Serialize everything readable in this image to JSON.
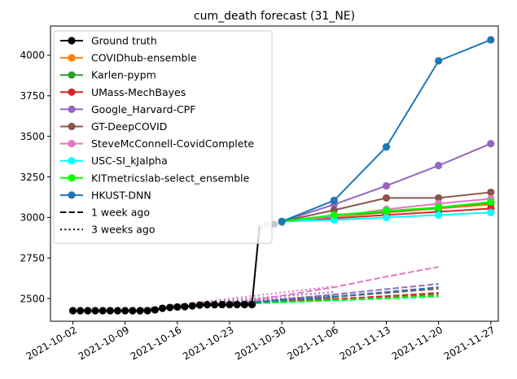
{
  "chart_data": {
    "type": "line",
    "title": "cum_death forecast (31_NE)",
    "xlabel": "",
    "ylabel": "",
    "x_range": [
      "2021-09-29",
      "2021-11-28"
    ],
    "ylim": [
      2360,
      4180
    ],
    "y_ticks": [
      2500,
      2750,
      3000,
      3250,
      3500,
      3750,
      4000
    ],
    "x_ticks": [
      "2021-10-02",
      "2021-10-09",
      "2021-10-16",
      "2021-10-23",
      "2021-10-30",
      "2021-11-06",
      "2021-11-13",
      "2021-11-20",
      "2021-11-27"
    ],
    "grid": false,
    "legend_position": "upper left",
    "ground_truth": {
      "name": "Ground truth",
      "color": "#000000",
      "points": [
        [
          "2021-10-02",
          2425
        ],
        [
          "2021-10-03",
          2425
        ],
        [
          "2021-10-04",
          2425
        ],
        [
          "2021-10-05",
          2425
        ],
        [
          "2021-10-06",
          2425
        ],
        [
          "2021-10-07",
          2425
        ],
        [
          "2021-10-08",
          2425
        ],
        [
          "2021-10-09",
          2425
        ],
        [
          "2021-10-10",
          2425
        ],
        [
          "2021-10-11",
          2425
        ],
        [
          "2021-10-12",
          2425
        ],
        [
          "2021-10-13",
          2430
        ],
        [
          "2021-10-14",
          2440
        ],
        [
          "2021-10-15",
          2445
        ],
        [
          "2021-10-16",
          2448
        ],
        [
          "2021-10-17",
          2450
        ],
        [
          "2021-10-18",
          2455
        ],
        [
          "2021-10-19",
          2460
        ],
        [
          "2021-10-20",
          2462
        ],
        [
          "2021-10-21",
          2462
        ],
        [
          "2021-10-22",
          2463
        ],
        [
          "2021-10-23",
          2463
        ],
        [
          "2021-10-24",
          2463
        ],
        [
          "2021-10-25",
          2463
        ],
        [
          "2021-10-26",
          2463
        ]
      ]
    },
    "gray_points": [
      [
        "2021-10-09",
        2425
      ],
      [
        "2021-10-10",
        2425
      ],
      [
        "2021-10-11",
        2425
      ],
      [
        "2021-10-12",
        2428
      ],
      [
        "2021-10-13",
        2432
      ],
      [
        "2021-10-14",
        2440
      ],
      [
        "2021-10-15",
        2445
      ],
      [
        "2021-10-16",
        2448
      ],
      [
        "2021-10-17",
        2452
      ],
      [
        "2021-10-18",
        2455
      ],
      [
        "2021-10-19",
        2460
      ],
      [
        "2021-10-20",
        2462
      ],
      [
        "2021-10-21",
        2462
      ],
      [
        "2021-10-22",
        2463
      ],
      [
        "2021-10-23",
        2463
      ],
      [
        "2021-10-24",
        2463
      ],
      [
        "2021-10-25",
        2463
      ],
      [
        "2021-10-27",
        2942
      ],
      [
        "2021-10-28",
        2955
      ],
      [
        "2021-10-29",
        2958
      ],
      [
        "2021-10-30",
        2965
      ]
    ],
    "series": [
      {
        "name": "COVIDhub-ensemble",
        "color": "#ff7f0e",
        "solid": [
          [
            "2021-10-30",
            2975
          ],
          [
            "2021-11-06",
            3005
          ],
          [
            "2021-11-13",
            3030
          ],
          [
            "2021-11-20",
            3055
          ],
          [
            "2021-11-27",
            3080
          ]
        ],
        "dashed": [
          [
            "2021-10-23",
            2465
          ],
          [
            "2021-11-06",
            2492
          ],
          [
            "2021-11-13",
            2508
          ],
          [
            "2021-11-20",
            2522
          ]
        ],
        "dotted": [
          [
            "2021-10-09",
            2425
          ],
          [
            "2021-10-23",
            2470
          ],
          [
            "2021-11-06",
            2496
          ]
        ]
      },
      {
        "name": "Karlen-pypm",
        "color": "#2ca02c",
        "solid": [
          [
            "2021-10-30",
            2975
          ],
          [
            "2021-11-06",
            3010
          ],
          [
            "2021-11-13",
            3035
          ],
          [
            "2021-11-20",
            3060
          ],
          [
            "2021-11-27",
            3090
          ]
        ],
        "dashed": [
          [
            "2021-10-23",
            2465
          ],
          [
            "2021-11-06",
            2495
          ],
          [
            "2021-11-13",
            2510
          ],
          [
            "2021-11-20",
            2528
          ]
        ],
        "dotted": [
          [
            "2021-10-09",
            2425
          ],
          [
            "2021-10-23",
            2472
          ],
          [
            "2021-11-06",
            2500
          ]
        ]
      },
      {
        "name": "UMass-MechBayes",
        "color": "#d62728",
        "solid": [
          [
            "2021-10-30",
            2975
          ],
          [
            "2021-11-06",
            2995
          ],
          [
            "2021-11-13",
            3015
          ],
          [
            "2021-11-20",
            3035
          ],
          [
            "2021-11-27",
            3055
          ]
        ],
        "dashed": [
          [
            "2021-10-23",
            2465
          ],
          [
            "2021-11-06",
            2497
          ],
          [
            "2021-11-13",
            2515
          ],
          [
            "2021-11-20",
            2535
          ]
        ],
        "dotted": [
          [
            "2021-10-09",
            2425
          ],
          [
            "2021-10-23",
            2475
          ],
          [
            "2021-11-06",
            2505
          ]
        ]
      },
      {
        "name": "Google_Harvard-CPF",
        "color": "#9467bd",
        "solid": [
          [
            "2021-10-30",
            2975
          ],
          [
            "2021-11-06",
            3080
          ],
          [
            "2021-11-13",
            3195
          ],
          [
            "2021-11-20",
            3320
          ],
          [
            "2021-11-27",
            3455
          ]
        ],
        "dashed": [
          [
            "2021-10-23",
            2465
          ],
          [
            "2021-11-06",
            2525
          ],
          [
            "2021-11-13",
            2558
          ],
          [
            "2021-11-20",
            2590
          ]
        ],
        "dotted": [
          [
            "2021-10-09",
            2425
          ],
          [
            "2021-10-23",
            2490
          ],
          [
            "2021-11-06",
            2540
          ]
        ]
      },
      {
        "name": "GT-DeepCOVID",
        "color": "#8c564b",
        "solid": [
          [
            "2021-10-30",
            2975
          ],
          [
            "2021-11-06",
            3045
          ],
          [
            "2021-11-13",
            3120
          ],
          [
            "2021-11-20",
            3120
          ],
          [
            "2021-11-27",
            3155
          ]
        ],
        "dashed": [
          [
            "2021-10-23",
            2465
          ],
          [
            "2021-11-06",
            2510
          ],
          [
            "2021-11-13",
            2535
          ],
          [
            "2021-11-20",
            2560
          ]
        ],
        "dotted": [
          [
            "2021-10-09",
            2425
          ],
          [
            "2021-10-23",
            2480
          ],
          [
            "2021-11-06",
            2520
          ]
        ]
      },
      {
        "name": "SteveMcConnell-CovidComplete",
        "color": "#e377c2",
        "solid": [
          [
            "2021-10-30",
            2975
          ],
          [
            "2021-11-06",
            3005
          ],
          [
            "2021-11-13",
            3050
          ],
          [
            "2021-11-20",
            3085
          ],
          [
            "2021-11-27",
            3115
          ]
        ],
        "dashed": [
          [
            "2021-10-23",
            2465
          ],
          [
            "2021-11-06",
            2570
          ],
          [
            "2021-11-13",
            2635
          ],
          [
            "2021-11-20",
            2695
          ]
        ],
        "dotted": [
          [
            "2021-10-09",
            2425
          ],
          [
            "2021-10-23",
            2500
          ],
          [
            "2021-11-06",
            2575
          ]
        ]
      },
      {
        "name": "USC-SI_kJalpha",
        "color": "#00ffff",
        "solid": [
          [
            "2021-10-30",
            2975
          ],
          [
            "2021-11-06",
            2985
          ],
          [
            "2021-11-13",
            3000
          ],
          [
            "2021-11-20",
            3015
          ],
          [
            "2021-11-27",
            3030
          ]
        ],
        "dashed": [
          [
            "2021-10-23",
            2465
          ],
          [
            "2021-11-06",
            2488
          ],
          [
            "2021-11-13",
            2500
          ],
          [
            "2021-11-20",
            2512
          ]
        ],
        "dotted": [
          [
            "2021-10-09",
            2425
          ],
          [
            "2021-10-23",
            2468
          ],
          [
            "2021-11-06",
            2490
          ]
        ]
      },
      {
        "name": "KITmetricslab-select_ensemble",
        "color": "#00ff00",
        "solid": [
          [
            "2021-10-30",
            2975
          ],
          [
            "2021-11-06",
            3015
          ],
          [
            "2021-11-13",
            3040
          ],
          [
            "2021-11-20",
            3062
          ],
          [
            "2021-11-27",
            3095
          ]
        ],
        "dashed": [
          [
            "2021-10-23",
            2465
          ],
          [
            "2021-11-06",
            2490
          ],
          [
            "2021-11-13",
            2502
          ],
          [
            "2021-11-20",
            2515
          ]
        ],
        "dotted": [
          [
            "2021-10-09",
            2425
          ],
          [
            "2021-10-23",
            2470
          ],
          [
            "2021-11-06",
            2495
          ]
        ]
      },
      {
        "name": "HKUST-DNN",
        "color": "#1f77b4",
        "solid": [
          [
            "2021-10-30",
            2975
          ],
          [
            "2021-11-06",
            3105
          ],
          [
            "2021-11-13",
            3435
          ],
          [
            "2021-11-20",
            3965
          ],
          [
            "2021-11-27",
            4095
          ]
        ],
        "dashed": [
          [
            "2021-10-23",
            2465
          ],
          [
            "2021-11-06",
            2512
          ],
          [
            "2021-11-13",
            2540
          ],
          [
            "2021-11-20",
            2570
          ]
        ],
        "dotted": [
          [
            "2021-10-09",
            2425
          ],
          [
            "2021-10-23",
            2475
          ],
          [
            "2021-11-06",
            2510
          ]
        ]
      }
    ],
    "legend": {
      "entries": [
        "Ground truth",
        "COVIDhub-ensemble",
        "Karlen-pypm",
        "UMass-MechBayes",
        "Google_Harvard-CPF",
        "GT-DeepCOVID",
        "SteveMcConnell-CovidComplete",
        "USC-SI_kJalpha",
        "KITmetricslab-select_ensemble",
        "HKUST-DNN"
      ],
      "style_entries": [
        {
          "label": "1 week ago",
          "style": "dashed"
        },
        {
          "label": "3 weeks ago",
          "style": "dotted"
        }
      ]
    }
  }
}
